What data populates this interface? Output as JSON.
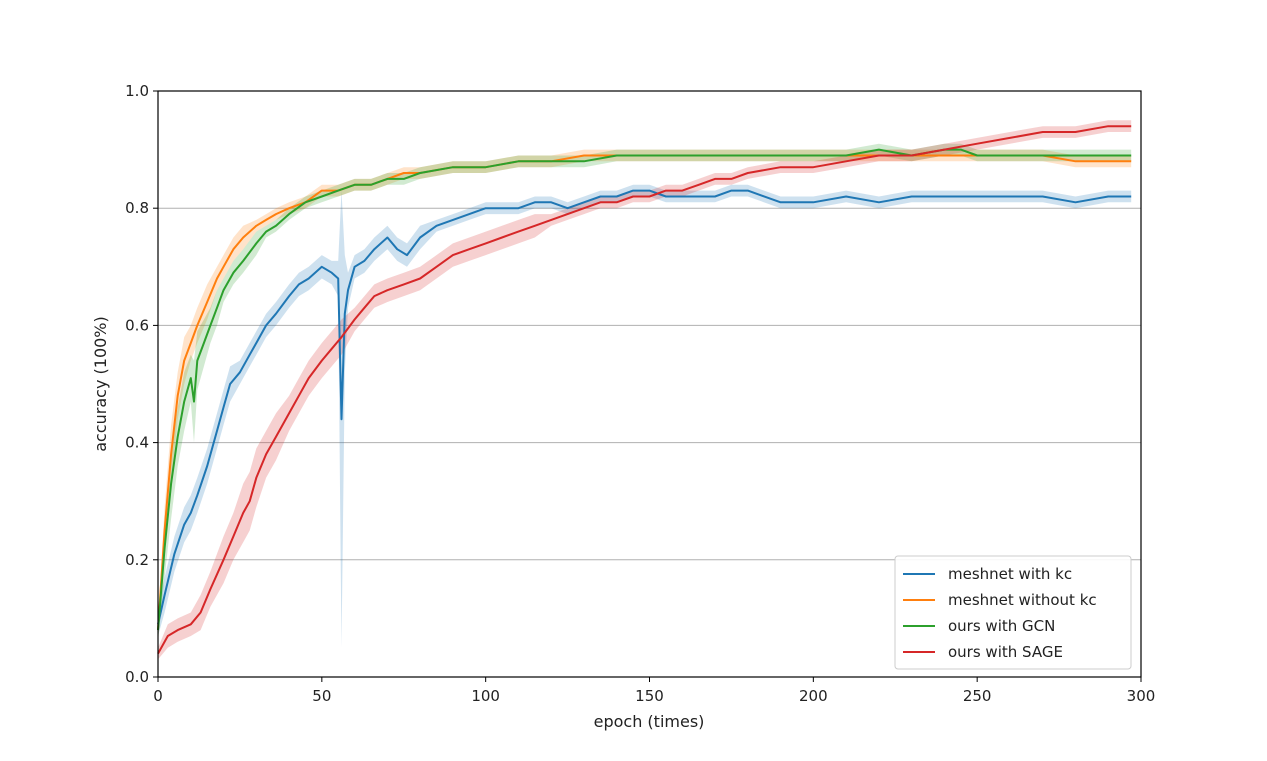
{
  "chart_data": {
    "type": "line",
    "title": "",
    "xlabel": "epoch (times)",
    "ylabel": "accuracy (100%)",
    "xlim": [
      0,
      300
    ],
    "ylim": [
      0.0,
      1.0
    ],
    "xticks": [
      "0",
      "50",
      "100",
      "150",
      "200",
      "250",
      "300"
    ],
    "yticks": [
      "0.0",
      "0.2",
      "0.4",
      "0.6",
      "0.8",
      "1.0"
    ],
    "grid": "horizontal",
    "legend_position": "bottom-right",
    "series": [
      {
        "name": "meshnet with kc",
        "color": "#1f77b4",
        "x": [
          0,
          2,
          5,
          8,
          10,
          12,
          15,
          18,
          20,
          22,
          25,
          28,
          30,
          33,
          36,
          40,
          43,
          46,
          50,
          53,
          55,
          56,
          57,
          58,
          60,
          63,
          66,
          70,
          73,
          76,
          80,
          85,
          90,
          95,
          100,
          105,
          110,
          115,
          120,
          125,
          130,
          135,
          140,
          145,
          150,
          155,
          160,
          165,
          170,
          175,
          180,
          190,
          200,
          210,
          220,
          230,
          240,
          250,
          260,
          270,
          280,
          290,
          297
        ],
        "values": [
          0.09,
          0.14,
          0.21,
          0.26,
          0.28,
          0.31,
          0.36,
          0.42,
          0.46,
          0.5,
          0.52,
          0.55,
          0.57,
          0.6,
          0.62,
          0.65,
          0.67,
          0.68,
          0.7,
          0.69,
          0.68,
          0.44,
          0.62,
          0.66,
          0.7,
          0.71,
          0.73,
          0.75,
          0.73,
          0.72,
          0.75,
          0.77,
          0.78,
          0.79,
          0.8,
          0.8,
          0.8,
          0.81,
          0.81,
          0.8,
          0.81,
          0.82,
          0.82,
          0.83,
          0.83,
          0.82,
          0.82,
          0.82,
          0.82,
          0.83,
          0.83,
          0.81,
          0.81,
          0.82,
          0.81,
          0.82,
          0.82,
          0.82,
          0.82,
          0.82,
          0.81,
          0.82,
          0.82
        ],
        "band": [
          0.02,
          0.03,
          0.03,
          0.03,
          0.03,
          0.03,
          0.03,
          0.03,
          0.03,
          0.03,
          0.02,
          0.02,
          0.02,
          0.02,
          0.02,
          0.02,
          0.02,
          0.02,
          0.02,
          0.02,
          0.03,
          0.39,
          0.1,
          0.03,
          0.02,
          0.02,
          0.02,
          0.02,
          0.02,
          0.02,
          0.02,
          0.01,
          0.01,
          0.01,
          0.01,
          0.01,
          0.01,
          0.01,
          0.01,
          0.01,
          0.01,
          0.01,
          0.01,
          0.01,
          0.01,
          0.01,
          0.01,
          0.01,
          0.01,
          0.01,
          0.01,
          0.01,
          0.01,
          0.01,
          0.01,
          0.01,
          0.01,
          0.01,
          0.01,
          0.01,
          0.01,
          0.01,
          0.01
        ]
      },
      {
        "name": "meshnet without kc",
        "color": "#ff7f0e",
        "x": [
          0,
          2,
          4,
          6,
          8,
          10,
          12,
          15,
          18,
          20,
          23,
          26,
          30,
          33,
          36,
          40,
          45,
          50,
          55,
          60,
          65,
          70,
          75,
          80,
          90,
          100,
          110,
          120,
          130,
          140,
          150,
          160,
          170,
          180,
          190,
          200,
          210,
          220,
          230,
          240,
          250,
          260,
          270,
          280,
          290,
          297
        ],
        "values": [
          0.08,
          0.25,
          0.38,
          0.48,
          0.54,
          0.57,
          0.6,
          0.64,
          0.68,
          0.7,
          0.73,
          0.75,
          0.77,
          0.78,
          0.79,
          0.8,
          0.81,
          0.83,
          0.83,
          0.84,
          0.84,
          0.85,
          0.86,
          0.86,
          0.87,
          0.87,
          0.88,
          0.88,
          0.89,
          0.89,
          0.89,
          0.89,
          0.89,
          0.89,
          0.89,
          0.89,
          0.89,
          0.89,
          0.89,
          0.89,
          0.89,
          0.89,
          0.89,
          0.88,
          0.88,
          0.88
        ],
        "band": [
          0.02,
          0.04,
          0.05,
          0.04,
          0.04,
          0.03,
          0.03,
          0.03,
          0.02,
          0.02,
          0.02,
          0.02,
          0.01,
          0.01,
          0.01,
          0.01,
          0.01,
          0.01,
          0.01,
          0.01,
          0.01,
          0.01,
          0.01,
          0.01,
          0.01,
          0.01,
          0.01,
          0.01,
          0.01,
          0.01,
          0.01,
          0.01,
          0.01,
          0.01,
          0.01,
          0.01,
          0.01,
          0.01,
          0.01,
          0.01,
          0.01,
          0.01,
          0.01,
          0.01,
          0.01,
          0.01
        ]
      },
      {
        "name": "ours with GCN",
        "color": "#2ca02c",
        "x": [
          0,
          2,
          4,
          6,
          8,
          10,
          11,
          12,
          14,
          16,
          18,
          20,
          23,
          26,
          30,
          33,
          36,
          40,
          45,
          50,
          55,
          60,
          65,
          70,
          75,
          80,
          90,
          100,
          110,
          120,
          130,
          140,
          150,
          160,
          170,
          180,
          190,
          200,
          210,
          220,
          230,
          240,
          245,
          250,
          260,
          270,
          280,
          290,
          297
        ],
        "values": [
          0.08,
          0.22,
          0.33,
          0.41,
          0.47,
          0.51,
          0.47,
          0.54,
          0.57,
          0.6,
          0.63,
          0.66,
          0.69,
          0.71,
          0.74,
          0.76,
          0.77,
          0.79,
          0.81,
          0.82,
          0.83,
          0.84,
          0.84,
          0.85,
          0.85,
          0.86,
          0.87,
          0.87,
          0.88,
          0.88,
          0.88,
          0.89,
          0.89,
          0.89,
          0.89,
          0.89,
          0.89,
          0.89,
          0.89,
          0.9,
          0.89,
          0.9,
          0.9,
          0.89,
          0.89,
          0.89,
          0.89,
          0.89,
          0.89
        ],
        "band": [
          0.02,
          0.05,
          0.06,
          0.05,
          0.05,
          0.04,
          0.07,
          0.05,
          0.04,
          0.03,
          0.03,
          0.02,
          0.02,
          0.02,
          0.02,
          0.01,
          0.01,
          0.01,
          0.01,
          0.01,
          0.01,
          0.01,
          0.01,
          0.01,
          0.01,
          0.01,
          0.01,
          0.01,
          0.01,
          0.01,
          0.01,
          0.01,
          0.01,
          0.01,
          0.01,
          0.01,
          0.01,
          0.01,
          0.01,
          0.01,
          0.01,
          0.01,
          0.01,
          0.01,
          0.01,
          0.01,
          0.01,
          0.01,
          0.01
        ]
      },
      {
        "name": "ours with SAGE",
        "color": "#d62728",
        "x": [
          0,
          3,
          6,
          10,
          13,
          16,
          20,
          23,
          26,
          28,
          30,
          33,
          36,
          40,
          43,
          46,
          50,
          53,
          56,
          60,
          63,
          66,
          70,
          75,
          80,
          85,
          90,
          95,
          100,
          105,
          110,
          115,
          120,
          125,
          130,
          135,
          140,
          145,
          150,
          155,
          160,
          165,
          170,
          175,
          180,
          190,
          200,
          210,
          220,
          230,
          240,
          250,
          260,
          270,
          280,
          290,
          297
        ],
        "values": [
          0.04,
          0.07,
          0.08,
          0.09,
          0.11,
          0.15,
          0.2,
          0.24,
          0.28,
          0.3,
          0.34,
          0.38,
          0.41,
          0.45,
          0.48,
          0.51,
          0.54,
          0.56,
          0.58,
          0.61,
          0.63,
          0.65,
          0.66,
          0.67,
          0.68,
          0.7,
          0.72,
          0.73,
          0.74,
          0.75,
          0.76,
          0.77,
          0.78,
          0.79,
          0.8,
          0.81,
          0.81,
          0.82,
          0.82,
          0.83,
          0.83,
          0.84,
          0.85,
          0.85,
          0.86,
          0.87,
          0.87,
          0.88,
          0.89,
          0.89,
          0.9,
          0.91,
          0.92,
          0.93,
          0.93,
          0.94,
          0.94
        ],
        "band": [
          0.01,
          0.02,
          0.02,
          0.02,
          0.03,
          0.03,
          0.04,
          0.04,
          0.05,
          0.05,
          0.05,
          0.04,
          0.04,
          0.03,
          0.03,
          0.03,
          0.03,
          0.03,
          0.03,
          0.02,
          0.02,
          0.02,
          0.02,
          0.02,
          0.02,
          0.02,
          0.02,
          0.02,
          0.02,
          0.02,
          0.02,
          0.02,
          0.01,
          0.01,
          0.01,
          0.01,
          0.01,
          0.01,
          0.01,
          0.01,
          0.01,
          0.01,
          0.01,
          0.01,
          0.01,
          0.01,
          0.01,
          0.01,
          0.01,
          0.01,
          0.01,
          0.01,
          0.01,
          0.01,
          0.01,
          0.01,
          0.01
        ]
      }
    ]
  }
}
